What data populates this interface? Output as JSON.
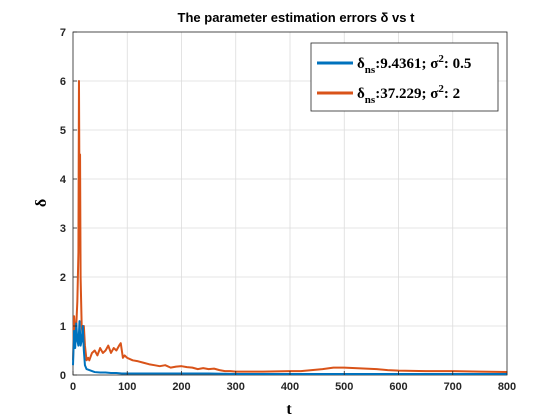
{
  "chart_data": {
    "type": "line",
    "title": "The parameter estimation errors δ vs t",
    "xlabel": "t",
    "ylabel": "δ",
    "xlim": [
      0,
      800
    ],
    "ylim": [
      0,
      7
    ],
    "xticks": [
      0,
      100,
      200,
      300,
      400,
      500,
      600,
      700,
      800
    ],
    "yticks": [
      0,
      1,
      2,
      3,
      4,
      5,
      6,
      7
    ],
    "grid": true,
    "legend_position": "top-right",
    "series": [
      {
        "name": "δns:9.4361; σ2: 0.5",
        "color": "#0072BD",
        "x": [
          0,
          2,
          4,
          6,
          8,
          10,
          12,
          14,
          16,
          18,
          20,
          22,
          25,
          30,
          35,
          40,
          50,
          60,
          70,
          80,
          90,
          100,
          120,
          150,
          200,
          250,
          300,
          400,
          500,
          600,
          700,
          800
        ],
        "y": [
          0.2,
          0.9,
          0.55,
          1.05,
          0.7,
          0.6,
          1.1,
          0.6,
          0.7,
          1.0,
          0.5,
          0.2,
          0.12,
          0.1,
          0.08,
          0.06,
          0.05,
          0.05,
          0.04,
          0.04,
          0.03,
          0.03,
          0.03,
          0.03,
          0.03,
          0.03,
          0.02,
          0.02,
          0.02,
          0.02,
          0.02,
          0.02
        ]
      },
      {
        "name": "δns:37.229; σ2: 2",
        "color": "#D95319",
        "x": [
          0,
          2,
          4,
          6,
          8,
          10,
          11,
          12,
          13,
          14,
          15,
          16,
          18,
          20,
          22,
          25,
          28,
          30,
          35,
          40,
          45,
          50,
          55,
          60,
          65,
          70,
          75,
          80,
          85,
          88,
          90,
          92,
          95,
          100,
          110,
          120,
          130,
          140,
          150,
          160,
          170,
          180,
          190,
          200,
          210,
          220,
          230,
          240,
          250,
          260,
          270,
          280,
          290,
          300,
          350,
          400,
          420,
          440,
          460,
          480,
          500,
          520,
          540,
          560,
          580,
          600,
          650,
          700,
          750,
          800
        ],
        "y": [
          0.3,
          1.2,
          0.8,
          1.0,
          1.5,
          2.5,
          6.0,
          3.5,
          4.5,
          2.0,
          1.5,
          1.0,
          0.8,
          1.0,
          0.6,
          0.3,
          0.35,
          0.3,
          0.45,
          0.5,
          0.4,
          0.55,
          0.45,
          0.5,
          0.6,
          0.45,
          0.55,
          0.5,
          0.6,
          0.65,
          0.5,
          0.35,
          0.4,
          0.35,
          0.3,
          0.28,
          0.25,
          0.22,
          0.2,
          0.18,
          0.2,
          0.15,
          0.17,
          0.18,
          0.16,
          0.15,
          0.12,
          0.14,
          0.12,
          0.13,
          0.1,
          0.08,
          0.08,
          0.07,
          0.07,
          0.08,
          0.08,
          0.1,
          0.12,
          0.15,
          0.15,
          0.14,
          0.13,
          0.12,
          0.1,
          0.09,
          0.08,
          0.08,
          0.07,
          0.06
        ]
      }
    ]
  }
}
